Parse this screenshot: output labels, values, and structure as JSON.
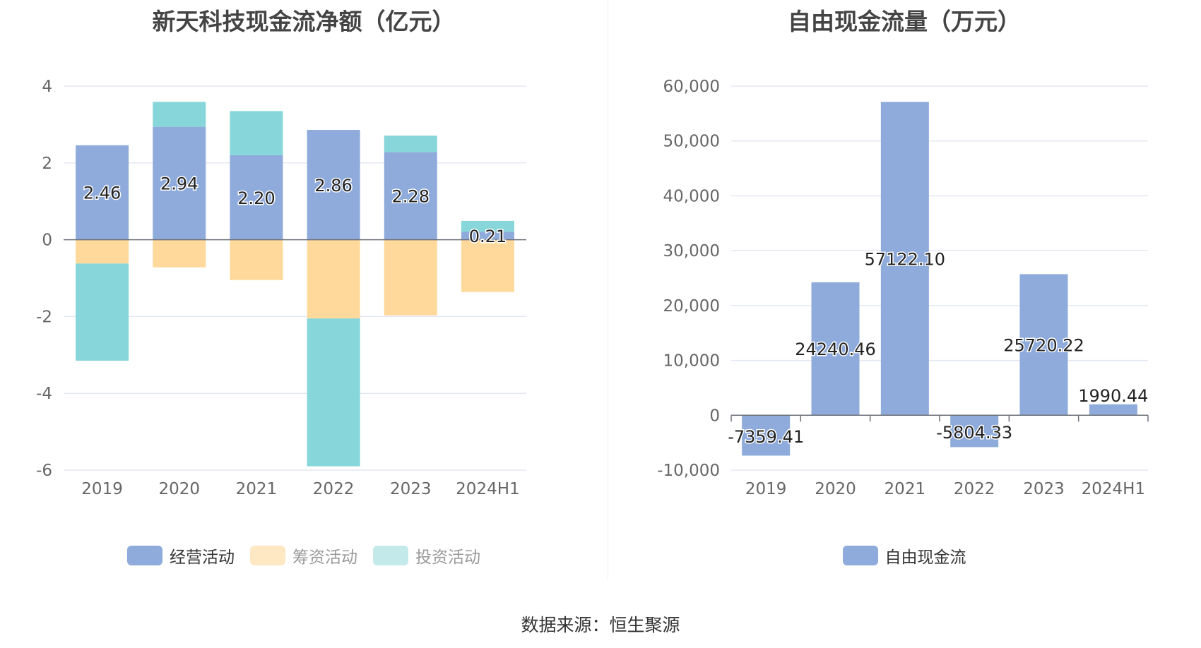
{
  "source": "数据来源：恒生聚源",
  "chart_data": [
    {
      "type": "bar",
      "stacked": true,
      "title": "新天科技现金流净额（亿元）",
      "categories": [
        "2019",
        "2020",
        "2021",
        "2022",
        "2023",
        "2024H1"
      ],
      "ylim": [
        -6,
        4
      ],
      "yticks": [
        "4",
        "2",
        "0",
        "-2",
        "-4",
        "-6"
      ],
      "yticks_values": [
        4,
        2,
        0,
        -2,
        -4,
        -6
      ],
      "grid": true,
      "legend_position": "bottom",
      "series": [
        {
          "name": "经营活动",
          "color": "#8eabdb",
          "values": [
            2.46,
            2.94,
            2.2,
            2.86,
            2.28,
            0.21
          ],
          "labels": [
            "2.46",
            "2.94",
            "2.20",
            "2.86",
            "2.28",
            "0.21"
          ]
        },
        {
          "name": "筹资活动",
          "color": "#fed99b",
          "values": [
            -0.62,
            -0.72,
            -1.05,
            -2.05,
            -1.97,
            -1.36
          ]
        },
        {
          "name": "投资活动",
          "color": "#87d6d9",
          "values": [
            -2.53,
            0.65,
            1.15,
            -3.85,
            0.43,
            0.28
          ]
        }
      ],
      "legend_colors": [
        "#8eabdb",
        "#fee8c4",
        "#c3e9eb"
      ]
    },
    {
      "type": "bar",
      "title": "自由现金流量（万元）",
      "categories": [
        "2019",
        "2020",
        "2021",
        "2022",
        "2023",
        "2024H1"
      ],
      "ylim": [
        -10000,
        60000
      ],
      "yticks": [
        "60,000",
        "50,000",
        "40,000",
        "30,000",
        "20,000",
        "10,000",
        "0",
        "-10,000"
      ],
      "yticks_values": [
        60000,
        50000,
        40000,
        30000,
        20000,
        10000,
        0,
        -10000
      ],
      "grid": true,
      "legend_position": "bottom",
      "series": [
        {
          "name": "自由现金流",
          "color": "#8eabdb",
          "values": [
            -7359.41,
            24240.46,
            57122.1,
            -5804.33,
            25720.22,
            1990.44
          ],
          "labels": [
            "-7359.41",
            "24240.46",
            "57122.10",
            "-5804.33",
            "25720.22",
            "1990.44"
          ]
        }
      ]
    }
  ]
}
